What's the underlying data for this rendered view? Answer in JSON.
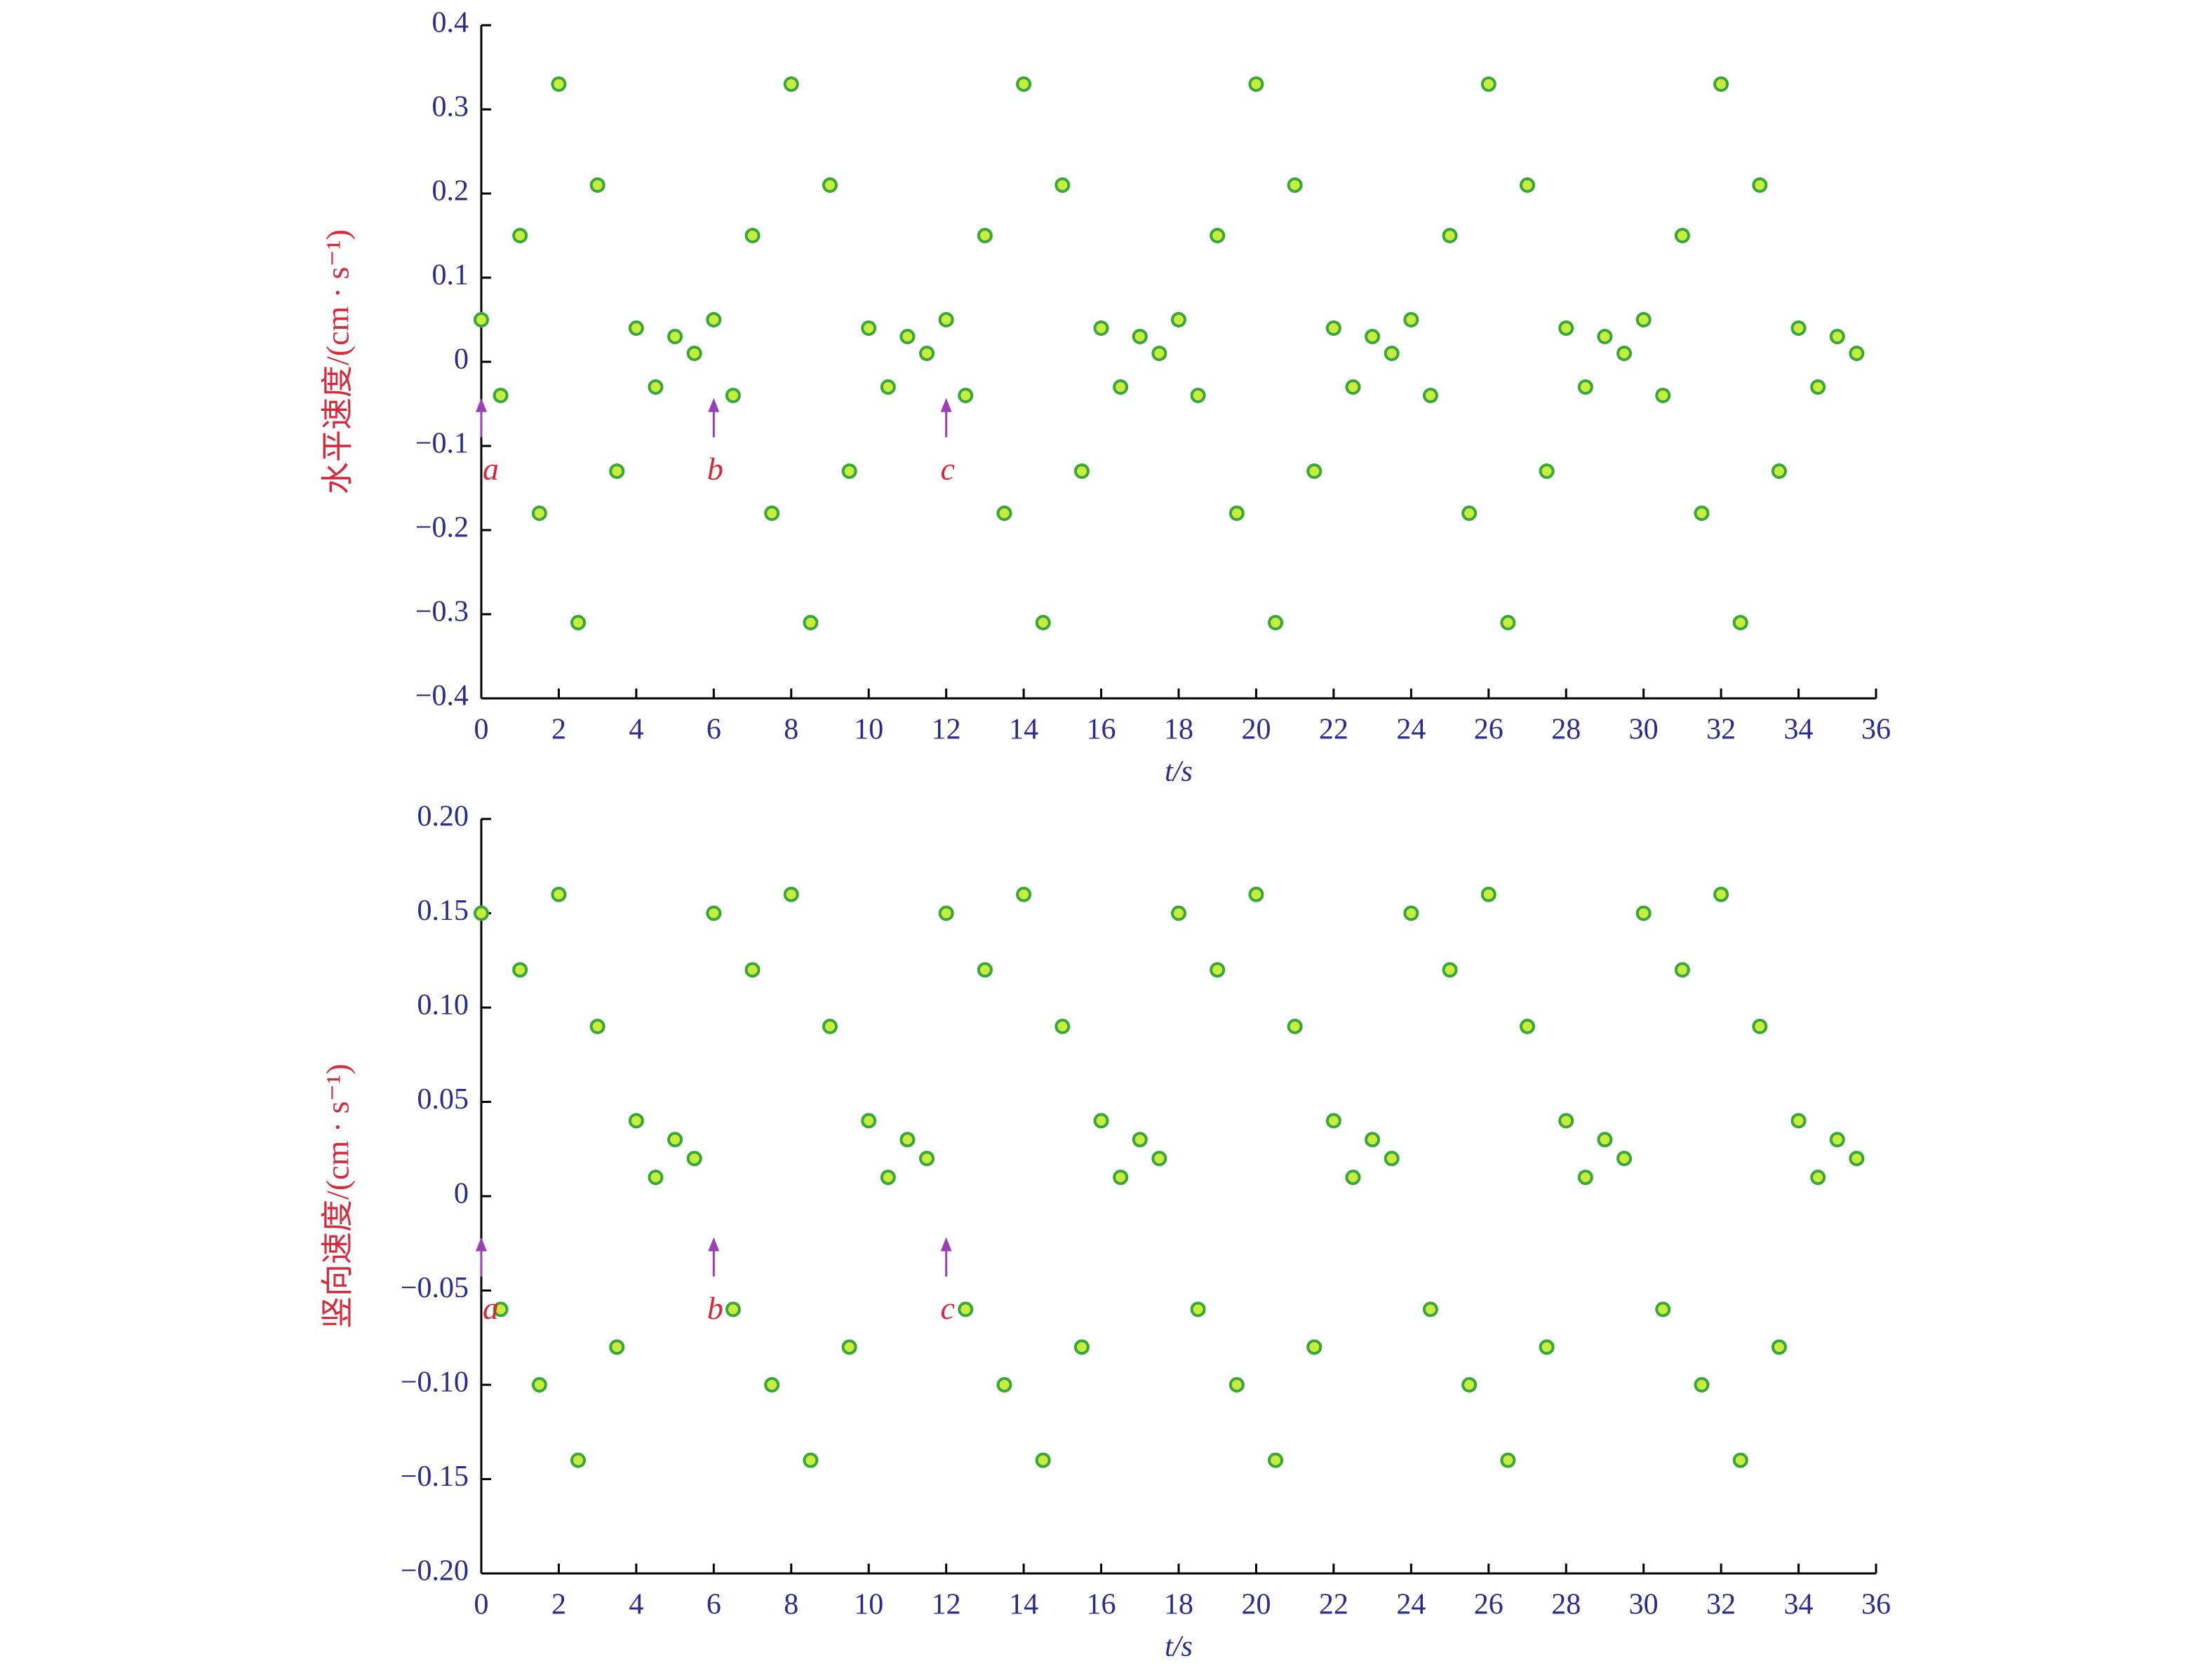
{
  "chart_data": [
    {
      "type": "scatter",
      "ylabel": "水平速度/(cm · s⁻¹)",
      "xlabel": "t/s",
      "color": "#3aa63a",
      "fill": "#c6ee3c",
      "xlim": [
        0,
        36
      ],
      "xticks": [
        0,
        2,
        4,
        6,
        8,
        10,
        12,
        14,
        16,
        18,
        20,
        22,
        24,
        26,
        28,
        30,
        32,
        34,
        36
      ],
      "ylim": [
        -0.4,
        0.4
      ],
      "yticks": [
        {
          "value": -0.4,
          "label": "−0.4"
        },
        {
          "value": -0.3,
          "label": "−0.3"
        },
        {
          "value": -0.2,
          "label": "−0.2"
        },
        {
          "value": -0.1,
          "label": "−0.1"
        },
        0,
        0.1,
        0.2,
        0.3,
        0.4
      ],
      "annotations": [
        {
          "text": "a",
          "x": 0
        },
        {
          "text": "b",
          "x": 6
        },
        {
          "text": "c",
          "x": 12
        }
      ],
      "x": [
        0,
        0.5,
        1,
        1.5,
        2,
        2.5,
        3,
        3.5,
        4,
        4.5,
        5,
        5.5,
        6,
        6.5,
        7,
        7.5,
        8,
        8.5,
        9,
        9.5,
        10,
        10.5,
        11,
        11.5,
        12,
        12.5,
        13,
        13.5,
        14,
        14.5,
        15,
        15.5,
        16,
        16.5,
        17,
        17.5,
        18,
        18.5,
        19,
        19.5,
        20,
        20.5,
        21,
        21.5,
        22,
        22.5,
        23,
        23.5,
        24,
        24.5,
        25,
        25.5,
        26,
        26.5,
        27,
        27.5,
        28,
        28.5,
        29,
        29.5,
        30,
        30.5,
        31,
        31.5,
        32,
        32.5,
        33,
        33.5,
        34,
        34.5,
        35,
        35.5
      ],
      "y": [
        0.05,
        -0.04,
        0.15,
        -0.18,
        0.33,
        -0.31,
        0.21,
        -0.13,
        0.04,
        -0.03,
        0.03,
        0.01,
        0.05,
        -0.04,
        0.15,
        -0.18,
        0.33,
        -0.31,
        0.21,
        -0.13,
        0.04,
        -0.03,
        0.03,
        0.01,
        0.05,
        -0.04,
        0.15,
        -0.18,
        0.33,
        -0.31,
        0.21,
        -0.13,
        0.04,
        -0.03,
        0.03,
        0.01,
        0.05,
        -0.04,
        0.15,
        -0.18,
        0.33,
        -0.31,
        0.21,
        -0.13,
        0.04,
        -0.03,
        0.03,
        0.01,
        0.05,
        -0.04,
        0.15,
        -0.18,
        0.33,
        -0.31,
        0.21,
        -0.13,
        0.04,
        -0.03,
        0.03,
        0.01,
        0.05,
        -0.04,
        0.15,
        -0.18,
        0.33,
        -0.31,
        0.21,
        -0.13,
        0.04,
        -0.03,
        0.03,
        0.01
      ]
    },
    {
      "type": "scatter",
      "ylabel": "竖向速度/(cm · s⁻¹)",
      "xlabel": "t/s",
      "color": "#3aa63a",
      "fill": "#c6ee3c",
      "xlim": [
        0,
        36
      ],
      "xticks": [
        0,
        2,
        4,
        6,
        8,
        10,
        12,
        14,
        16,
        18,
        20,
        22,
        24,
        26,
        28,
        30,
        32,
        34,
        36
      ],
      "ylim": [
        -0.2,
        0.2
      ],
      "yticks": [
        {
          "value": -0.2,
          "label": "−0.20"
        },
        {
          "value": -0.15,
          "label": "−0.15"
        },
        {
          "value": -0.1,
          "label": "−0.10"
        },
        {
          "value": -0.05,
          "label": "−0.05"
        },
        0,
        0.05,
        {
          "value": 0.1,
          "label": "0.10"
        },
        0.15,
        {
          "value": 0.2,
          "label": "0.20"
        }
      ],
      "annotations": [
        {
          "text": "a",
          "x": 0
        },
        {
          "text": "b",
          "x": 6
        },
        {
          "text": "c",
          "x": 12
        }
      ],
      "x": [
        0,
        0.5,
        1,
        1.5,
        2,
        2.5,
        3,
        3.5,
        4,
        4.5,
        5,
        5.5,
        6,
        6.5,
        7,
        7.5,
        8,
        8.5,
        9,
        9.5,
        10,
        10.5,
        11,
        11.5,
        12,
        12.5,
        13,
        13.5,
        14,
        14.5,
        15,
        15.5,
        16,
        16.5,
        17,
        17.5,
        18,
        18.5,
        19,
        19.5,
        20,
        20.5,
        21,
        21.5,
        22,
        22.5,
        23,
        23.5,
        24,
        24.5,
        25,
        25.5,
        26,
        26.5,
        27,
        27.5,
        28,
        28.5,
        29,
        29.5,
        30,
        30.5,
        31,
        31.5,
        32,
        32.5,
        33,
        33.5,
        34,
        34.5,
        35,
        35.5
      ],
      "y": [
        0.15,
        -0.06,
        0.12,
        -0.1,
        0.16,
        -0.14,
        0.09,
        -0.08,
        0.04,
        0.01,
        0.03,
        0.02,
        0.15,
        -0.06,
        0.12,
        -0.1,
        0.16,
        -0.14,
        0.09,
        -0.08,
        0.04,
        0.01,
        0.03,
        0.02,
        0.15,
        -0.06,
        0.12,
        -0.1,
        0.16,
        -0.14,
        0.09,
        -0.08,
        0.04,
        0.01,
        0.03,
        0.02,
        0.15,
        -0.06,
        0.12,
        -0.1,
        0.16,
        -0.14,
        0.09,
        -0.08,
        0.04,
        0.01,
        0.03,
        0.02,
        0.15,
        -0.06,
        0.12,
        -0.1,
        0.16,
        -0.14,
        0.09,
        -0.08,
        0.04,
        0.01,
        0.03,
        0.02,
        0.15,
        -0.06,
        0.12,
        -0.1,
        0.16,
        -0.14,
        0.09,
        -0.08,
        0.04,
        0.01,
        0.03,
        0.02
      ]
    }
  ]
}
